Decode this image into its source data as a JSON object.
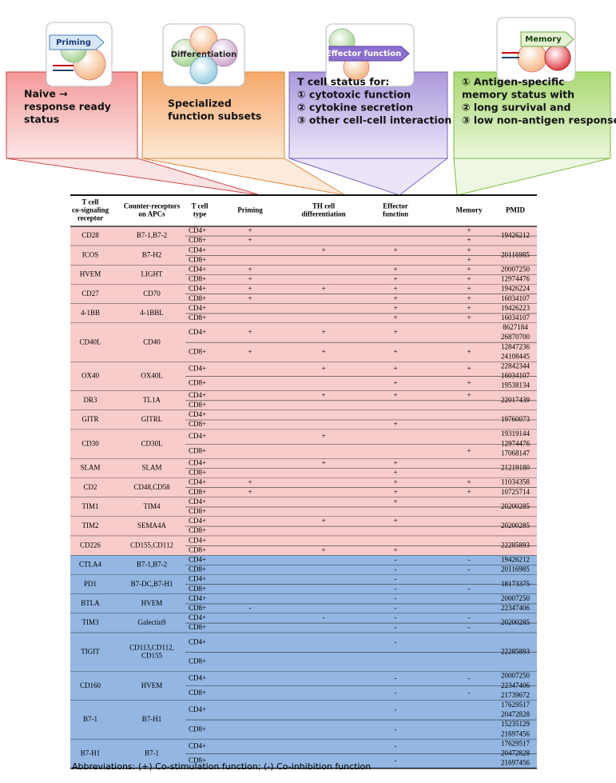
{
  "panels": [
    {
      "icon_label": "Priming",
      "lines": [
        "Naive →",
        "response ready",
        "status"
      ]
    },
    {
      "icon_label": "Differentiation",
      "lines": [
        "Specialized",
        "function subsets"
      ]
    },
    {
      "icon_label": "Effector function",
      "lines": [
        "T cell status for:",
        "① cytotoxic function",
        "② cytokine secretion",
        "③ other cell-cell interaction"
      ]
    },
    {
      "icon_label": "Memory",
      "lines": [
        "① Antigen-specific",
        "memory status with",
        "② long survival and",
        "③ low non-antigen response"
      ]
    }
  ],
  "table": {
    "columns": [
      [
        "T cell",
        "co-signaling",
        "receptor"
      ],
      [
        "Counter-receptors",
        "on APCs"
      ],
      [
        "T cell",
        "type"
      ],
      [
        "Priming"
      ],
      [
        "TH cell",
        "differentiation"
      ],
      [
        "Effector",
        "function"
      ],
      [
        "Memory"
      ],
      [
        "PMID"
      ]
    ],
    "groups": [
      {
        "color": "#f9cccc",
        "rows": [
          {
            "receptor": "CD28",
            "ligand": [
              "B7-1,B7-2"
            ],
            "subrows": [
              {
                "type": "CD4+",
                "marks": [
                  "+",
                  null,
                  null,
                  "+"
                ]
              },
              {
                "type": "CD8+",
                "marks": [
                  "+",
                  null,
                  null,
                  "+"
                ]
              }
            ],
            "pmid": [
              "19426212"
            ]
          },
          {
            "receptor": "ICOS",
            "ligand": [
              "B7-H2"
            ],
            "subrows": [
              {
                "type": "CD4+",
                "marks": [
                  null,
                  "+",
                  "+",
                  "+"
                ]
              },
              {
                "type": "CD8+",
                "marks": [
                  null,
                  null,
                  null,
                  "+"
                ]
              }
            ],
            "pmid": [
              "20116985"
            ]
          },
          {
            "receptor": "HVEM",
            "ligand": [
              "LIGHT"
            ],
            "subrows": [
              {
                "type": "CD4+",
                "marks": [
                  "+",
                  null,
                  "+",
                  "+"
                ]
              },
              {
                "type": "CD8+",
                "marks": [
                  "+",
                  null,
                  "+",
                  "+"
                ]
              }
            ],
            "pmid": [
              "20007250",
              "12974476"
            ]
          },
          {
            "receptor": "CD27",
            "ligand": [
              "CD70"
            ],
            "subrows": [
              {
                "type": "CD4+",
                "marks": [
                  "+",
                  "+",
                  "+",
                  "+"
                ]
              },
              {
                "type": "CD8+",
                "marks": [
                  "+",
                  null,
                  "+",
                  "+"
                ]
              }
            ],
            "pmid": [
              "19426224",
              "16034107"
            ]
          },
          {
            "receptor": "4-1BB",
            "ligand": [
              "4-1BBL"
            ],
            "subrows": [
              {
                "type": "CD4+",
                "marks": [
                  null,
                  null,
                  "+",
                  "+"
                ]
              },
              {
                "type": "CD8+",
                "marks": [
                  null,
                  null,
                  "+",
                  "+"
                ]
              }
            ],
            "pmid": [
              "19426223",
              "16034107"
            ]
          },
          {
            "receptor": "CD40L",
            "ligand": [
              "CD40"
            ],
            "subrows": [
              {
                "type": "CD4+",
                "marks": [
                  "+",
                  "+",
                  "+",
                  null
                ]
              },
              {
                "type": "CD8+",
                "marks": [
                  "+",
                  "+",
                  "+",
                  "+"
                ]
              }
            ],
            "pmid": [
              "8627184",
              "26870700",
              "12847236",
              "24108445"
            ]
          },
          {
            "receptor": "OX40",
            "ligand": [
              "OX40L"
            ],
            "subrows": [
              {
                "type": "CD4+",
                "marks": [
                  null,
                  "+",
                  "+",
                  "+"
                ]
              },
              {
                "type": "CD8+",
                "marks": [
                  null,
                  null,
                  "+",
                  "+"
                ]
              }
            ],
            "pmid": [
              "22842344",
              "16034107",
              "19538134"
            ]
          },
          {
            "receptor": "DR3",
            "ligand": [
              "TL1A"
            ],
            "subrows": [
              {
                "type": "CD4+",
                "marks": [
                  null,
                  "+",
                  "+",
                  "+"
                ]
              },
              {
                "type": "CD8+",
                "marks": [
                  null,
                  null,
                  null,
                  null
                ]
              }
            ],
            "pmid": [
              "22017439"
            ]
          },
          {
            "receptor": "GITR",
            "ligand": [
              "GITRL"
            ],
            "subrows": [
              {
                "type": "CD4+",
                "marks": [
                  null,
                  null,
                  null,
                  null
                ]
              },
              {
                "type": "CD8+",
                "marks": [
                  null,
                  null,
                  "+",
                  null
                ]
              }
            ],
            "pmid": [
              "19760073"
            ]
          },
          {
            "receptor": "CD30",
            "ligand": [
              "CD30L"
            ],
            "subrows": [
              {
                "type": "CD4+",
                "marks": [
                  null,
                  "+",
                  null,
                  null
                ]
              },
              {
                "type": "CD8+",
                "marks": [
                  null,
                  null,
                  null,
                  "+"
                ]
              }
            ],
            "pmid": [
              "19319144",
              "12974476",
              "17068147"
            ]
          },
          {
            "receptor": "SLAM",
            "ligand": [
              "SLAM"
            ],
            "subrows": [
              {
                "type": "CD4+",
                "marks": [
                  null,
                  "+",
                  "+",
                  null
                ]
              },
              {
                "type": "CD8+",
                "marks": [
                  null,
                  null,
                  "+",
                  null
                ]
              }
            ],
            "pmid": [
              "21219180"
            ]
          },
          {
            "receptor": "CD2",
            "ligand": [
              "CD48,CD58"
            ],
            "subrows": [
              {
                "type": "CD4+",
                "marks": [
                  "+",
                  null,
                  "+",
                  "+"
                ]
              },
              {
                "type": "CD8+",
                "marks": [
                  "+",
                  null,
                  "+",
                  "+"
                ]
              }
            ],
            "pmid": [
              "11034358",
              "10725714"
            ]
          },
          {
            "receptor": "TIM1",
            "ligand": [
              "TIM4"
            ],
            "subrows": [
              {
                "type": "CD4+",
                "marks": [
                  null,
                  null,
                  "+",
                  null
                ]
              },
              {
                "type": "CD8+",
                "marks": [
                  null,
                  null,
                  null,
                  null
                ]
              }
            ],
            "pmid": [
              "20200285"
            ]
          },
          {
            "receptor": "TIM2",
            "ligand": [
              "SEMA4A"
            ],
            "subrows": [
              {
                "type": "CD4+",
                "marks": [
                  null,
                  "+",
                  "+",
                  null
                ]
              },
              {
                "type": "CD8+",
                "marks": [
                  null,
                  null,
                  null,
                  null
                ]
              }
            ],
            "pmid": [
              "20200285"
            ]
          },
          {
            "receptor": "CD226",
            "ligand": [
              "CD155,CD112"
            ],
            "subrows": [
              {
                "type": "CD4+",
                "marks": [
                  null,
                  null,
                  null,
                  null
                ]
              },
              {
                "type": "CD8+",
                "marks": [
                  null,
                  "+",
                  "+",
                  null
                ]
              }
            ],
            "pmid": [
              "22285893"
            ]
          }
        ]
      },
      {
        "color": "#93b6e2",
        "rows": [
          {
            "receptor": "CTLA4",
            "ligand": [
              "B7-1,B7-2"
            ],
            "subrows": [
              {
                "type": "CD4+",
                "marks": [
                  null,
                  null,
                  "-",
                  "-"
                ]
              },
              {
                "type": "CD8+",
                "marks": [
                  null,
                  null,
                  "-",
                  "-"
                ]
              }
            ],
            "pmid": [
              "19426212",
              "20116985"
            ]
          },
          {
            "receptor": "PD1",
            "ligand": [
              "B7-DC,B7-H1"
            ],
            "subrows": [
              {
                "type": "CD4+",
                "marks": [
                  null,
                  null,
                  "-",
                  null
                ]
              },
              {
                "type": "CD8+",
                "marks": [
                  null,
                  null,
                  "-",
                  "-"
                ]
              }
            ],
            "pmid": [
              "18173375"
            ]
          },
          {
            "receptor": "BTLA",
            "ligand": [
              "HVEM"
            ],
            "subrows": [
              {
                "type": "CD4+",
                "marks": [
                  null,
                  null,
                  "-",
                  null
                ]
              },
              {
                "type": "CD8+",
                "marks": [
                  "-",
                  null,
                  "-",
                  null
                ]
              }
            ],
            "pmid": [
              "20007250",
              "22347406"
            ]
          },
          {
            "receptor": "TIM3",
            "ligand": [
              "Galectin9"
            ],
            "subrows": [
              {
                "type": "CD4+",
                "marks": [
                  null,
                  "-",
                  "-",
                  "-"
                ]
              },
              {
                "type": "CD8+",
                "marks": [
                  null,
                  null,
                  "-",
                  "-"
                ]
              }
            ],
            "pmid": [
              "20200285"
            ]
          },
          {
            "receptor": "TIGIT",
            "ligand": [
              "CD113,CD112,",
              "CD155"
            ],
            "subrows": [
              {
                "type": "CD4+",
                "marks": [
                  null,
                  null,
                  "-",
                  null
                ]
              },
              {
                "type": "CD8+",
                "marks": [
                  null,
                  null,
                  null,
                  null
                ]
              }
            ],
            "pmid": [
              "22285893"
            ]
          },
          {
            "receptor": "CD160",
            "ligand": [
              "HVEM"
            ],
            "subrows": [
              {
                "type": "CD4+",
                "marks": [
                  null,
                  null,
                  "-",
                  "-"
                ]
              },
              {
                "type": "CD8+",
                "marks": [
                  null,
                  null,
                  "-",
                  "-"
                ]
              }
            ],
            "pmid": [
              "20007250",
              "22347406",
              "21739672"
            ]
          },
          {
            "receptor": "B7-1",
            "ligand": [
              "B7-H1"
            ],
            "subrows": [
              {
                "type": "CD4+",
                "marks": [
                  null,
                  null,
                  "-",
                  null
                ]
              },
              {
                "type": "CD8+",
                "marks": [
                  null,
                  null,
                  "-",
                  null
                ]
              }
            ],
            "pmid": [
              "17629517",
              "20472828",
              "15235129",
              "21697456"
            ]
          },
          {
            "receptor": "B7-H1",
            "ligand": [
              "B7-1"
            ],
            "subrows": [
              {
                "type": "CD4+",
                "marks": [
                  null,
                  null,
                  "-",
                  null
                ]
              },
              {
                "type": "CD8+",
                "marks": [
                  null,
                  null,
                  "-",
                  null
                ]
              }
            ],
            "pmid": [
              "17629517",
              "20472828",
              "21697456"
            ]
          }
        ]
      }
    ]
  },
  "footnote": "Abbreviations: (+) Co-stimulation function; (-) Co-inhibition function"
}
